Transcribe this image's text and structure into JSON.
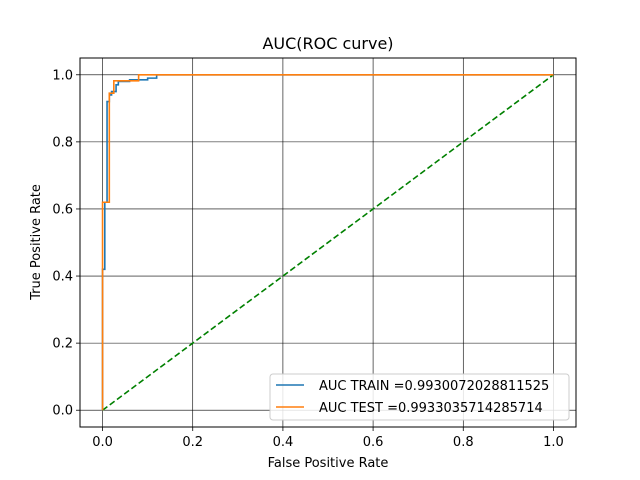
{
  "chart_data": {
    "type": "line",
    "title": "AUC(ROC curve)",
    "xlabel": "False Positive Rate",
    "ylabel": "True Positive Rate",
    "xlim": [
      -0.05,
      1.05
    ],
    "ylim": [
      -0.05,
      1.05
    ],
    "xticks": [
      0.0,
      0.2,
      0.4,
      0.6,
      0.8,
      1.0
    ],
    "yticks": [
      0.0,
      0.2,
      0.4,
      0.6,
      0.8,
      1.0
    ],
    "xtick_labels": [
      "0.0",
      "0.2",
      "0.4",
      "0.6",
      "0.8",
      "1.0"
    ],
    "ytick_labels": [
      "0.0",
      "0.2",
      "0.4",
      "0.6",
      "0.8",
      "1.0"
    ],
    "grid": true,
    "legend_position": "lower-right",
    "series": [
      {
        "name": "AUC TRAIN =0.9930072028811525",
        "color": "#1f77b4",
        "style": "solid",
        "step": true,
        "x": [
          0.0,
          0.0,
          0.005,
          0.005,
          0.01,
          0.01,
          0.015,
          0.015,
          0.02,
          0.02,
          0.03,
          0.03,
          0.035,
          0.035,
          0.06,
          0.06,
          0.1,
          0.1,
          0.12,
          0.12,
          1.0
        ],
        "y": [
          0.0,
          0.42,
          0.42,
          0.62,
          0.62,
          0.92,
          0.92,
          0.94,
          0.94,
          0.95,
          0.95,
          0.97,
          0.97,
          0.98,
          0.98,
          0.985,
          0.985,
          0.99,
          0.99,
          1.0,
          1.0
        ]
      },
      {
        "name": "AUC TEST =0.9933035714285714",
        "color": "#ff7f0e",
        "style": "solid",
        "step": true,
        "x": [
          0.0,
          0.0,
          0.015,
          0.015,
          0.025,
          0.025,
          0.08,
          0.08,
          1.0
        ],
        "y": [
          0.0,
          0.62,
          0.62,
          0.945,
          0.945,
          0.982,
          0.982,
          1.0,
          1.0
        ]
      },
      {
        "name": "",
        "color": "#008000",
        "style": "dashed",
        "step": false,
        "x": [
          0.0,
          1.0
        ],
        "y": [
          0.0,
          1.0
        ]
      }
    ]
  }
}
